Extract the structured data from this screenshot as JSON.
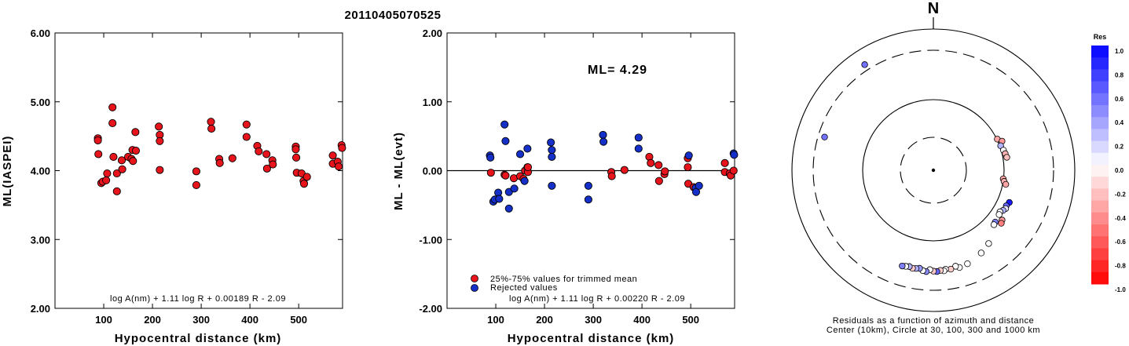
{
  "title": "20110405070525",
  "colors": {
    "accepted": "#e8141c",
    "rejected": "#1530c8",
    "positive_res": "#0000ff",
    "negative_res": "#ff0000"
  },
  "chart_data": [
    {
      "type": "scatter",
      "id": "left",
      "title": "",
      "xlabel": "Hypocentral distance (km)",
      "ylabel": "ML(IASPEI)",
      "xlim": [
        0,
        590
      ],
      "ylim": [
        2.0,
        6.0
      ],
      "x_ticks": [
        100,
        200,
        300,
        400,
        500
      ],
      "y_ticks": [
        2.0,
        3.0,
        4.0,
        5.0,
        6.0
      ],
      "y_tick_labels": [
        "2.00",
        "3.00",
        "4.00",
        "5.00",
        "6.00"
      ],
      "formula": "log A(nm) + 1.11 log R + 0.00189 R - 2.09",
      "series": [
        {
          "points": [
            [
              88,
              4.47
            ],
            [
              88,
              4.44
            ],
            [
              89,
              4.24
            ],
            [
              95,
              3.82
            ],
            [
              98,
              3.84
            ],
            [
              105,
              3.86
            ],
            [
              107,
              3.96
            ],
            [
              118,
              4.92
            ],
            [
              118,
              4.69
            ],
            [
              120,
              4.2
            ],
            [
              127,
              3.96
            ],
            [
              127,
              3.7
            ],
            [
              137,
              4.15
            ],
            [
              138,
              4.02
            ],
            [
              150,
              4.2
            ],
            [
              157,
              4.17
            ],
            [
              159,
              4.3
            ],
            [
              160,
              4.14
            ],
            [
              165,
              4.56
            ],
            [
              166,
              4.29
            ],
            [
              213,
              4.64
            ],
            [
              215,
              4.52
            ],
            [
              215,
              4.43
            ],
            [
              215,
              4.01
            ],
            [
              290,
              3.99
            ],
            [
              290,
              3.79
            ],
            [
              320,
              4.71
            ],
            [
              321,
              4.61
            ],
            [
              337,
              4.17
            ],
            [
              338,
              4.11
            ],
            [
              364,
              4.18
            ],
            [
              393,
              4.67
            ],
            [
              393,
              4.49
            ],
            [
              415,
              4.36
            ],
            [
              418,
              4.28
            ],
            [
              434,
              4.24
            ],
            [
              435,
              4.03
            ],
            [
              446,
              4.15
            ],
            [
              447,
              4.09
            ],
            [
              494,
              4.35
            ],
            [
              494,
              4.31
            ],
            [
              495,
              4.19
            ],
            [
              496,
              3.97
            ],
            [
              506,
              3.96
            ],
            [
              510,
              3.85
            ],
            [
              511,
              3.81
            ],
            [
              517,
              3.91
            ],
            [
              570,
              4.22
            ],
            [
              570,
              4.1
            ],
            [
              580,
              4.13
            ],
            [
              582,
              4.06
            ],
            [
              588,
              4.37
            ],
            [
              589,
              4.33
            ]
          ]
        }
      ]
    },
    {
      "type": "scatter",
      "id": "middle",
      "title": "",
      "xlabel": "Hypocentral distance (km)",
      "ylabel": "ML - ML(evt)",
      "xlim": [
        0,
        590
      ],
      "ylim": [
        -2.0,
        2.0
      ],
      "x_ticks": [
        100,
        200,
        300,
        400,
        500
      ],
      "y_ticks": [
        -2.0,
        -1.0,
        0.0,
        1.0,
        2.0
      ],
      "y_tick_labels": [
        "-2.00",
        "-1.00",
        "0.00",
        "1.00",
        "2.00"
      ],
      "hline": 0.0,
      "annotation": "ML= 4.29",
      "formula": "log A(nm) + 1.11 log R + 0.00220 R - 2.09",
      "legend": {
        "position": "bottom-left",
        "entries": [
          {
            "label": "25%-75% values for trimmed mean",
            "color": "#e8141c"
          },
          {
            "label": "Rejected values",
            "color": "#1530c8"
          }
        ]
      },
      "series": [
        {
          "color": "#e8141c",
          "points": [
            [
              90,
              -0.03
            ],
            [
              118,
              -0.06
            ],
            [
              120,
              -0.07
            ],
            [
              137,
              -0.11
            ],
            [
              150,
              -0.08
            ],
            [
              157,
              -0.12
            ],
            [
              160,
              0.0
            ],
            [
              165,
              0.05
            ],
            [
              166,
              -0.02
            ],
            [
              166,
              0.05
            ],
            [
              337,
              -0.02
            ],
            [
              338,
              -0.08
            ],
            [
              364,
              0.01
            ],
            [
              415,
              0.2
            ],
            [
              418,
              0.11
            ],
            [
              434,
              0.08
            ],
            [
              435,
              -0.15
            ],
            [
              446,
              -0.05
            ],
            [
              447,
              -0.01
            ],
            [
              494,
              0.18
            ],
            [
              494,
              0.05
            ],
            [
              495,
              -0.19
            ],
            [
              506,
              -0.24
            ],
            [
              570,
              0.11
            ],
            [
              570,
              -0.02
            ],
            [
              580,
              -0.04
            ],
            [
              582,
              -0.07
            ],
            [
              588,
              0.0
            ]
          ]
        },
        {
          "color": "#1530c8",
          "points": [
            [
              88,
              0.22
            ],
            [
              89,
              0.19
            ],
            [
              95,
              -0.45
            ],
            [
              98,
              -0.42
            ],
            [
              105,
              -0.32
            ],
            [
              107,
              -0.41
            ],
            [
              118,
              0.67
            ],
            [
              120,
              0.43
            ],
            [
              127,
              -0.31
            ],
            [
              127,
              -0.55
            ],
            [
              138,
              -0.26
            ],
            [
              150,
              0.24
            ],
            [
              159,
              -0.15
            ],
            [
              165,
              0.32
            ],
            [
              213,
              0.41
            ],
            [
              215,
              0.3
            ],
            [
              215,
              0.2
            ],
            [
              215,
              -0.22
            ],
            [
              290,
              -0.22
            ],
            [
              290,
              -0.42
            ],
            [
              320,
              0.52
            ],
            [
              321,
              0.42
            ],
            [
              393,
              0.48
            ],
            [
              393,
              0.32
            ],
            [
              496,
              0.22
            ],
            [
              510,
              -0.25
            ],
            [
              511,
              -0.31
            ],
            [
              517,
              -0.22
            ],
            [
              588,
              0.25
            ],
            [
              589,
              0.23
            ]
          ]
        }
      ]
    },
    {
      "type": "scatter",
      "id": "polar",
      "title": "",
      "north_label": "N",
      "caption_line1": "Residuals as a function of azimuth and distance",
      "caption_line2": "Center (10km), Circle at 30, 100, 300 and 1000 km",
      "colorbar": {
        "title": "Res",
        "ticks": [
          1.0,
          0.8,
          0.6,
          0.4,
          0.2,
          0.0,
          -0.2,
          -0.4,
          -0.6,
          -0.8,
          -1.0
        ],
        "tick_labels": [
          "1.0",
          "0.8",
          "0.6",
          "0.4",
          "0.2",
          "0.0",
          "-0.2",
          "-0.4",
          "-0.6",
          "-0.8",
          "-1.0"
        ]
      },
      "rings_km": [
        30,
        100,
        300,
        1000
      ],
      "ring_styles": [
        "dashed",
        "solid",
        "dashed",
        "solid"
      ],
      "points_azimuth_distance_res": [
        [
          -33,
          420,
          0.55
        ],
        [
          -73,
          260,
          0.55
        ],
        [
          64,
          101,
          -0.35
        ],
        [
          67,
          109,
          -0.4
        ],
        [
          70,
          102,
          0.3
        ],
        [
          74,
          105,
          0.0
        ],
        [
          77,
          107,
          -0.3
        ],
        [
          80,
          109,
          -0.25
        ],
        [
          97,
          99,
          -0.35
        ],
        [
          99,
          102,
          -0.3
        ],
        [
          101,
          107,
          -0.35
        ],
        [
          113,
          130,
          0.9
        ],
        [
          116,
          126,
          0.6
        ],
        [
          118,
          128,
          0.1
        ],
        [
          120,
          124,
          0.3
        ],
        [
          122,
          119,
          0.0
        ],
        [
          124,
          121,
          0.0
        ],
        [
          126,
          137,
          -0.4
        ],
        [
          128,
          141,
          -0.5
        ],
        [
          130,
          125,
          0.5
        ],
        [
          132,
          127,
          0.0
        ],
        [
          143,
          160,
          0.0
        ],
        [
          150,
          174,
          0.0
        ],
        [
          160,
          190,
          0.0
        ],
        [
          165,
          195,
          0.0
        ],
        [
          167,
          186,
          0.0
        ],
        [
          170,
          194,
          -0.2
        ],
        [
          173,
          191,
          0.0
        ],
        [
          174,
          197,
          0.0
        ],
        [
          176,
          194,
          -0.2
        ],
        [
          178,
          198,
          0.6
        ],
        [
          180,
          196,
          -0.2
        ],
        [
          182,
          190,
          0.0
        ],
        [
          184,
          199,
          0.45
        ],
        [
          186,
          196,
          0.0
        ],
        [
          188,
          188,
          0.4
        ],
        [
          190,
          191,
          0.3
        ],
        [
          192,
          193,
          -0.2
        ],
        [
          194,
          189,
          0.3
        ],
        [
          196,
          192,
          0.0
        ],
        [
          198,
          195,
          0.5
        ]
      ]
    }
  ]
}
